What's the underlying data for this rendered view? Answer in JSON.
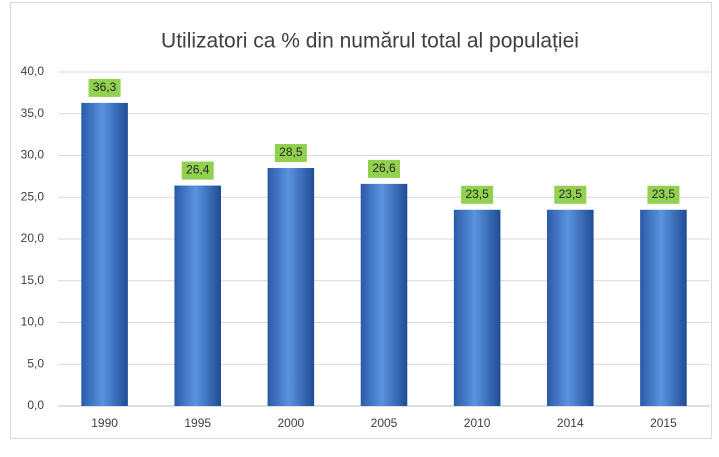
{
  "chart_data": {
    "type": "bar",
    "title": "Utilizatori ca % din numărul total al populației",
    "categories": [
      "1990",
      "1995",
      "2000",
      "2005",
      "2010",
      "2014",
      "2015"
    ],
    "values": [
      36.3,
      26.4,
      28.5,
      26.6,
      23.5,
      23.5,
      23.5
    ],
    "value_labels": [
      "36,3",
      "26,4",
      "28,5",
      "26,6",
      "23,5",
      "23,5",
      "23,5"
    ],
    "color": "#3a6fc4",
    "label_color": "#92d050",
    "ylim": [
      0,
      40
    ],
    "yticks": [
      {
        "value": 0,
        "label": "0,0"
      },
      {
        "value": 5,
        "label": "5,0"
      },
      {
        "value": 10,
        "label": "10,0"
      },
      {
        "value": 15,
        "label": "15,0"
      },
      {
        "value": 20,
        "label": "20,0"
      },
      {
        "value": 25,
        "label": "25,0"
      },
      {
        "value": 30,
        "label": "30,0"
      },
      {
        "value": 35,
        "label": "35,0"
      },
      {
        "value": 40,
        "label": "40,0"
      }
    ],
    "grid": true
  }
}
